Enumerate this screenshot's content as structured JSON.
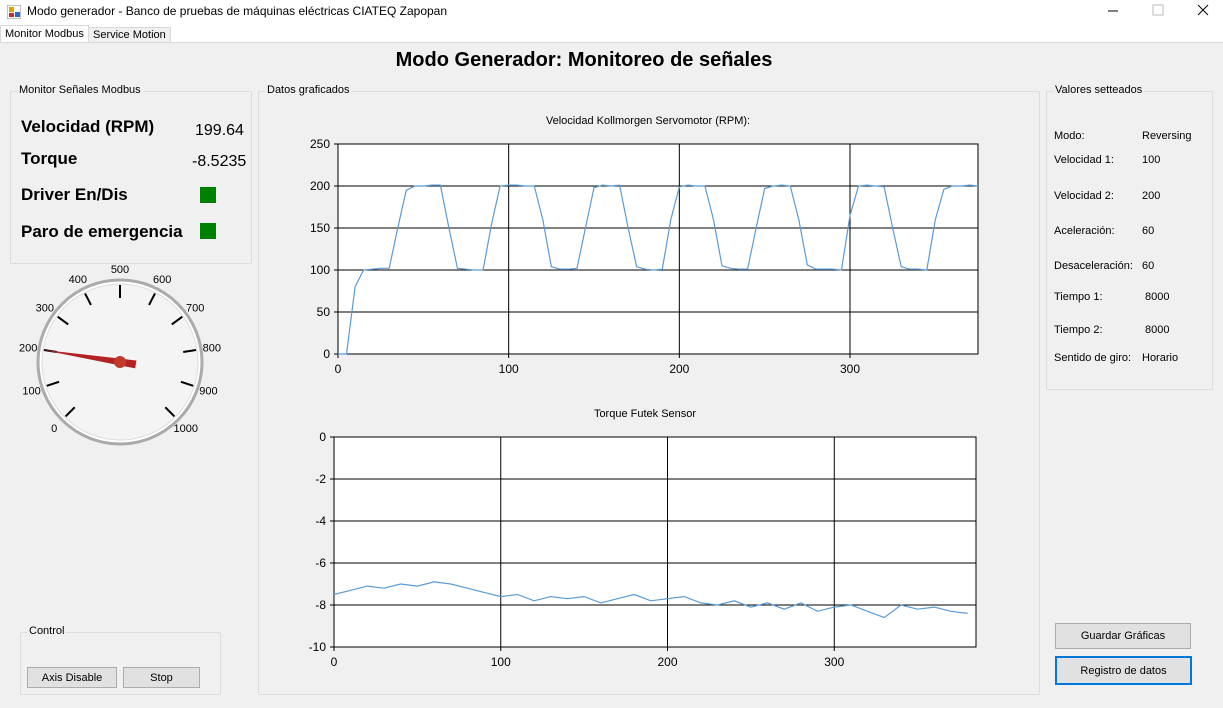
{
  "window": {
    "title": "Modo generador - Banco de pruebas de máquinas eléctricas CIATEQ Zapopan"
  },
  "tabs": [
    "Monitor Modbus",
    "Service Motion"
  ],
  "header": {
    "title": "Modo Generador: Monitoreo de señales"
  },
  "monitor": {
    "title": "Monitor Señales Modbus",
    "velocity_label": "Velocidad (RPM)",
    "velocity": 199.64,
    "torque_label": "Torque",
    "torque": -8.5235,
    "driver_label": "Driver En/Dis",
    "emergency_label": "Paro de emergencia"
  },
  "gauge": {
    "range": [
      0,
      1000
    ],
    "ticks": [
      0,
      100,
      200,
      300,
      400,
      500,
      600,
      700,
      800,
      900,
      1000
    ]
  },
  "control": {
    "title": "Control",
    "buttons": [
      "Axis Disable",
      "Stop"
    ]
  },
  "charts_group": {
    "title": "Datos graficados"
  },
  "chart_data": [
    {
      "type": "line",
      "title": "Velocidad Kollmorgen Servomotor (RPM):",
      "x": [
        0,
        5,
        10,
        15,
        20,
        25,
        30,
        35,
        40,
        45,
        50,
        55,
        60,
        65,
        70,
        75,
        80,
        85,
        90,
        95,
        100,
        105,
        110,
        115,
        120,
        125,
        130,
        135,
        140,
        145,
        150,
        155,
        160,
        165,
        170,
        175,
        180,
        185,
        190,
        195,
        200,
        205,
        210,
        215,
        220,
        225,
        230,
        235,
        240,
        245,
        250,
        255,
        260,
        265,
        270,
        275,
        280,
        285,
        290,
        295,
        300,
        305,
        310,
        315,
        320,
        325,
        330,
        335,
        340,
        345,
        350,
        355,
        360,
        365,
        370,
        375
      ],
      "series": [
        {
          "color": "#5b9bd5",
          "values": [
            0,
            0,
            80,
            100,
            101,
            102,
            102,
            150,
            195,
            200,
            200,
            201,
            201,
            150,
            102,
            101,
            100,
            100,
            155,
            200,
            201,
            201,
            200,
            200,
            160,
            104,
            101,
            101,
            102,
            150,
            198,
            201,
            200,
            201,
            150,
            104,
            101,
            100,
            101,
            160,
            199,
            201,
            200,
            200,
            160,
            105,
            102,
            101,
            101,
            150,
            197,
            200,
            201,
            200,
            160,
            106,
            101,
            101,
            101,
            100,
            165,
            200,
            201,
            200,
            199,
            150,
            104,
            101,
            101,
            100,
            160,
            196,
            200,
            200,
            201,
            200
          ]
        }
      ],
      "xlim": [
        0,
        375
      ],
      "ylim": [
        0,
        250
      ],
      "xticks": [
        0,
        100,
        200,
        300
      ],
      "yticks": [
        0,
        50,
        100,
        150,
        200,
        250
      ],
      "grid": true
    },
    {
      "type": "line",
      "title": "Torque Futek Sensor",
      "x": [
        0,
        10,
        20,
        30,
        40,
        50,
        60,
        70,
        80,
        90,
        100,
        110,
        120,
        130,
        140,
        150,
        160,
        170,
        180,
        190,
        200,
        210,
        220,
        230,
        240,
        250,
        260,
        270,
        280,
        290,
        300,
        310,
        320,
        330,
        340,
        350,
        360,
        370,
        380
      ],
      "series": [
        {
          "color": "#5b9bd5",
          "values": [
            -7.5,
            -7.3,
            -7.1,
            -7.2,
            -7.0,
            -7.1,
            -6.9,
            -7.0,
            -7.2,
            -7.4,
            -7.6,
            -7.5,
            -7.8,
            -7.6,
            -7.7,
            -7.6,
            -7.9,
            -7.7,
            -7.5,
            -7.8,
            -7.7,
            -7.6,
            -7.9,
            -8.0,
            -7.8,
            -8.1,
            -7.9,
            -8.2,
            -7.9,
            -8.3,
            -8.1,
            -8.0,
            -8.3,
            -8.6,
            -8.0,
            -8.2,
            -8.1,
            -8.3,
            -8.4
          ]
        }
      ],
      "xlim": [
        0,
        385
      ],
      "ylim": [
        -10,
        0
      ],
      "xticks": [
        0,
        100,
        200,
        300
      ],
      "yticks": [
        -10,
        -8,
        -6,
        -4,
        -2,
        0
      ],
      "grid": true
    }
  ],
  "settings": {
    "title": "Valores setteados",
    "rows": [
      [
        "Modo:",
        "Reversing"
      ],
      [
        "Velocidad 1:",
        100
      ],
      [
        "Velocidad 2:",
        200
      ],
      [
        "Aceleración:",
        60
      ],
      [
        "Desaceleración:",
        60
      ],
      [
        "Tiempo 1:",
        8000
      ],
      [
        "Tiempo 2:",
        8000
      ],
      [
        "Sentido de giro:",
        "Horario"
      ]
    ]
  },
  "buttons": [
    "Guardar Gráficas",
    "Registro de datos"
  ]
}
